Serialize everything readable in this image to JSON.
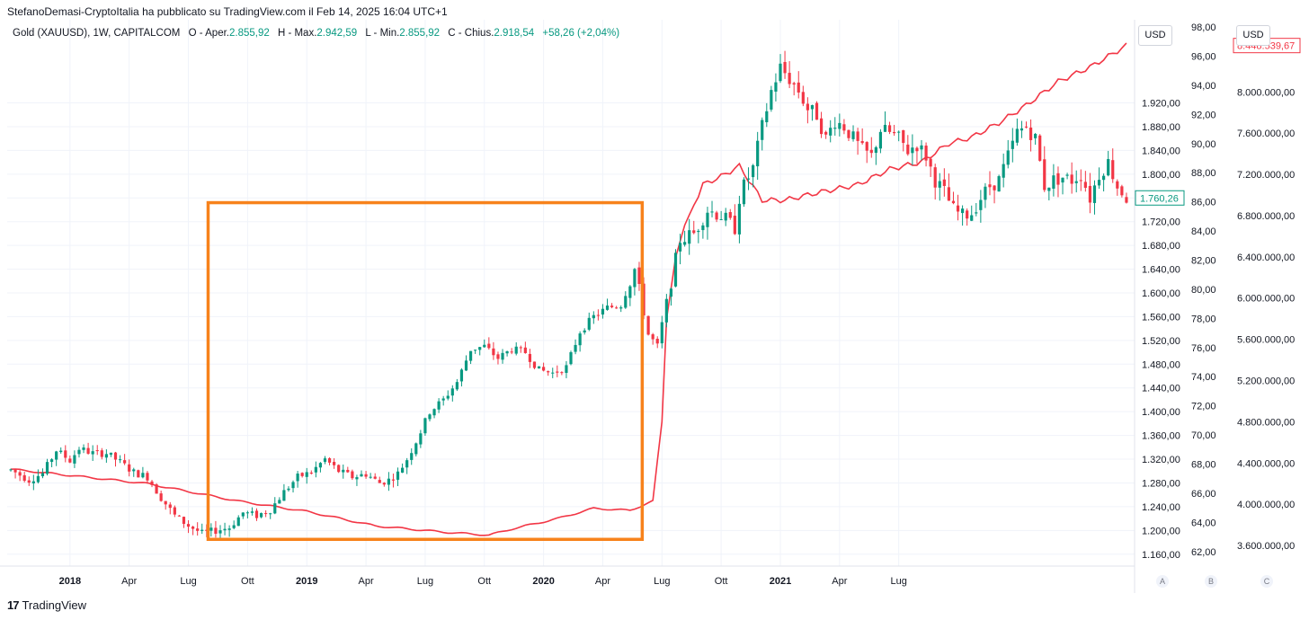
{
  "header": {
    "attribution": "StefanoDemasi-CryptoItalia ha pubblicato su TradingView.com il Feb 14, 2025 16:04 UTC+1",
    "symbol": "Gold (XAUUSD), 1W, CAPITALCOM",
    "open_label": "O - Aper.",
    "open_value": "2.855,92",
    "high_label": "H - Max.",
    "high_value": "2.942,59",
    "low_label": "L - Min.",
    "low_value": "2.855,92",
    "close_label": "C - Chius.",
    "close_value": "2.918,54",
    "change": "+58,26 (+2,04%)"
  },
  "currency_buttons": [
    "USD",
    "USD"
  ],
  "axis_letters": [
    "A",
    "B",
    "C"
  ],
  "footer": {
    "brand": "TradingView",
    "logo": "17"
  },
  "colors": {
    "up": "#089981",
    "down": "#f23645",
    "overlay_line": "#f23645",
    "highlight_box": "#f7821b",
    "grid": "#f0f3fa",
    "text": "#131722"
  },
  "chart_data": {
    "type": "candlestick",
    "title": "Gold (XAUUSD), 1W, CAPITALCOM",
    "x_labels": [
      "2018",
      "Apr",
      "Lug",
      "Ott",
      "2019",
      "Apr",
      "Lug",
      "Ott",
      "2020",
      "Apr",
      "Lug",
      "Ott",
      "2021",
      "Apr",
      "Lug"
    ],
    "x_range": [
      "2017-10",
      "2021-11"
    ],
    "axes": {
      "price": {
        "ticks": [
          "1.920,00",
          "1.880,00",
          "1.840,00",
          "1.800,00",
          "1.760,00",
          "1.720,00",
          "1.680,00",
          "1.640,00",
          "1.600,00",
          "1.560,00",
          "1.520,00",
          "1.480,00",
          "1.440,00",
          "1.400,00",
          "1.360,00",
          "1.320,00",
          "1.280,00",
          "1.240,00",
          "1.200,00",
          "1.160,00"
        ],
        "range": [
          1140,
          2060
        ],
        "current_label": "1.760,26"
      },
      "secondary": {
        "ticks": [
          "98,00",
          "96,00",
          "94,00",
          "92,00",
          "90,00",
          "88,00",
          "86,00",
          "84,00",
          "82,00",
          "80,00",
          "78,00",
          "76,00",
          "74,00",
          "72,00",
          "70,00",
          "68,00",
          "66,00",
          "64,00",
          "62,00"
        ],
        "range": [
          61,
          98.5
        ]
      },
      "overlay": {
        "ticks": [
          "8.000.000,00",
          "7.600.000,00",
          "7.200.000,00",
          "6.800.000,00",
          "6.400.000,00",
          "6.000.000,00",
          "5.600.000,00",
          "5.200.000,00",
          "4.800.000,00",
          "4.400.000,00",
          "4.000.000,00",
          "3.600.000,00"
        ],
        "range": [
          3400000,
          8700000
        ],
        "current_label": "8.448.539,67"
      }
    },
    "price_path": [
      [
        0,
        1302
      ],
      [
        4,
        1285
      ],
      [
        7,
        1296
      ],
      [
        10,
        1335
      ],
      [
        13,
        1318
      ],
      [
        15,
        1338
      ],
      [
        18,
        1330
      ],
      [
        21,
        1330
      ],
      [
        24,
        1315
      ],
      [
        27,
        1298
      ],
      [
        30,
        1290
      ],
      [
        33,
        1255
      ],
      [
        36,
        1225
      ],
      [
        39,
        1208
      ],
      [
        42,
        1195
      ],
      [
        45,
        1200
      ],
      [
        48,
        1205
      ],
      [
        51,
        1230
      ],
      [
        54,
        1225
      ],
      [
        57,
        1235
      ],
      [
        60,
        1265
      ],
      [
        63,
        1290
      ],
      [
        66,
        1298
      ],
      [
        69,
        1320
      ],
      [
        72,
        1300
      ],
      [
        75,
        1290
      ],
      [
        78,
        1295
      ],
      [
        81,
        1280
      ],
      [
        83,
        1285
      ],
      [
        85,
        1296
      ],
      [
        87,
        1320
      ],
      [
        89,
        1350
      ],
      [
        92,
        1400
      ],
      [
        95,
        1420
      ],
      [
        98,
        1450
      ],
      [
        101,
        1505
      ],
      [
        104,
        1510
      ],
      [
        107,
        1490
      ],
      [
        110,
        1505
      ],
      [
        113,
        1500
      ],
      [
        116,
        1470
      ],
      [
        119,
        1465
      ],
      [
        122,
        1475
      ],
      [
        125,
        1535
      ],
      [
        128,
        1560
      ],
      [
        131,
        1575
      ],
      [
        134,
        1580
      ],
      [
        137,
        1640
      ],
      [
        140,
        1530
      ],
      [
        142,
        1510
      ],
      [
        144,
        1585
      ],
      [
        147,
        1690
      ],
      [
        150,
        1700
      ],
      [
        153,
        1740
      ],
      [
        156,
        1730
      ],
      [
        159,
        1710
      ],
      [
        160,
        1760
      ],
      [
        161,
        1780
      ],
      [
        163,
        1810
      ],
      [
        165,
        1880
      ],
      [
        167,
        1940
      ],
      [
        169,
        1980
      ],
      [
        171,
        1960
      ],
      [
        173,
        1940
      ],
      [
        175,
        1910
      ],
      [
        177,
        1900
      ],
      [
        179,
        1860
      ],
      [
        181,
        1890
      ],
      [
        183,
        1880
      ],
      [
        185,
        1860
      ],
      [
        187,
        1840
      ],
      [
        189,
        1830
      ],
      [
        191,
        1875
      ],
      [
        193,
        1870
      ],
      [
        195,
        1860
      ],
      [
        197,
        1840
      ],
      [
        199,
        1850
      ],
      [
        201,
        1830
      ],
      [
        203,
        1790
      ],
      [
        205,
        1770
      ],
      [
        207,
        1740
      ],
      [
        209,
        1730
      ],
      [
        211,
        1735
      ],
      [
        213,
        1760
      ],
      [
        215,
        1780
      ],
      [
        217,
        1790
      ],
      [
        219,
        1830
      ],
      [
        221,
        1870
      ],
      [
        223,
        1880
      ],
      [
        225,
        1860
      ],
      [
        227,
        1780
      ],
      [
        229,
        1790
      ],
      [
        231,
        1795
      ],
      [
        233,
        1790
      ],
      [
        235,
        1800
      ],
      [
        237,
        1760
      ],
      [
        239,
        1800
      ],
      [
        241,
        1820
      ],
      [
        243,
        1780
      ],
      [
        245,
        1760
      ]
    ],
    "overlay_path": [
      [
        0,
        4340000
      ],
      [
        30,
        4200000
      ],
      [
        50,
        4030000
      ],
      [
        65,
        3930000
      ],
      [
        80,
        3790000
      ],
      [
        95,
        3730000
      ],
      [
        105,
        3700000
      ],
      [
        110,
        3760000
      ],
      [
        120,
        3860000
      ],
      [
        128,
        3960000
      ],
      [
        136,
        3940000
      ],
      [
        141,
        4030000
      ],
      [
        143,
        4800000
      ],
      [
        144,
        5800000
      ],
      [
        146,
        6400000
      ],
      [
        148,
        6700000
      ],
      [
        152,
        7100000
      ],
      [
        156,
        7180000
      ],
      [
        160,
        7280000
      ],
      [
        165,
        6950000
      ],
      [
        170,
        6950000
      ],
      [
        178,
        7030000
      ],
      [
        186,
        7100000
      ],
      [
        193,
        7250000
      ],
      [
        200,
        7320000
      ],
      [
        206,
        7500000
      ],
      [
        211,
        7560000
      ],
      [
        217,
        7700000
      ],
      [
        223,
        7870000
      ],
      [
        230,
        8100000
      ],
      [
        237,
        8240000
      ],
      [
        245,
        8450000
      ]
    ],
    "highlight_box": {
      "x_start": "2018-08",
      "x_end": "2020-06",
      "y_low": 1185,
      "y_high": 1752,
      "label": ""
    }
  }
}
